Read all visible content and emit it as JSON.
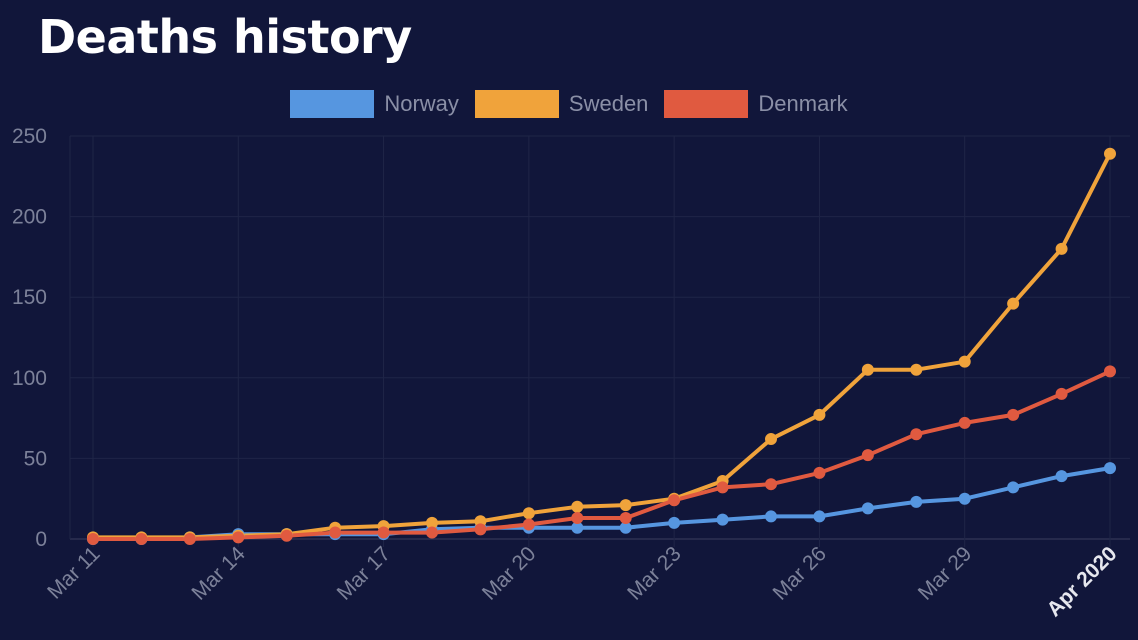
{
  "page": {
    "title": "Deaths history"
  },
  "chart_data": {
    "type": "line",
    "title": "Deaths history",
    "xlabel": "",
    "ylabel": "",
    "x": [
      "Mar 11",
      "Mar 12",
      "Mar 13",
      "Mar 14",
      "Mar 15",
      "Mar 16",
      "Mar 17",
      "Mar 18",
      "Mar 19",
      "Mar 20",
      "Mar 21",
      "Mar 22",
      "Mar 23",
      "Mar 24",
      "Mar 25",
      "Mar 26",
      "Mar 27",
      "Mar 28",
      "Mar 29",
      "Mar 30",
      "Mar 31",
      "Apr 1"
    ],
    "x_tick_labels": [
      {
        "index": 0,
        "label": "Mar 11",
        "major": false
      },
      {
        "index": 3,
        "label": "Mar 14",
        "major": false
      },
      {
        "index": 6,
        "label": "Mar 17",
        "major": false
      },
      {
        "index": 9,
        "label": "Mar 20",
        "major": false
      },
      {
        "index": 12,
        "label": "Mar 23",
        "major": false
      },
      {
        "index": 15,
        "label": "Mar 26",
        "major": false
      },
      {
        "index": 18,
        "label": "Mar 29",
        "major": false
      },
      {
        "index": 21,
        "label": "Apr 2020",
        "major": true
      }
    ],
    "ylim": [
      0,
      250
    ],
    "y_ticks": [
      0,
      50,
      100,
      150,
      200,
      250
    ],
    "grid": true,
    "legend": "top-center",
    "series": [
      {
        "name": "Norway",
        "color": "#5696e0",
        "values": [
          0,
          0,
          1,
          3,
          3,
          3,
          3,
          6,
          7,
          7,
          7,
          7,
          10,
          12,
          14,
          14,
          19,
          23,
          25,
          32,
          39,
          44
        ]
      },
      {
        "name": "Sweden",
        "color": "#f0a33b",
        "values": [
          1,
          1,
          1,
          2,
          3,
          7,
          8,
          10,
          11,
          16,
          20,
          21,
          25,
          36,
          62,
          77,
          105,
          105,
          110,
          146,
          180,
          239
        ]
      },
      {
        "name": "Denmark",
        "color": "#e05a40",
        "values": [
          0,
          0,
          0,
          1,
          2,
          4,
          4,
          4,
          6,
          9,
          13,
          13,
          24,
          32,
          34,
          41,
          52,
          65,
          72,
          77,
          90,
          104
        ]
      }
    ]
  }
}
